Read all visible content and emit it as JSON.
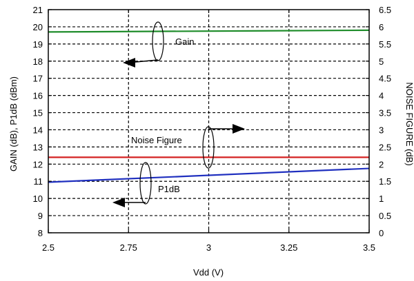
{
  "chart_data": {
    "type": "line",
    "xlabel": "Vdd (V)",
    "ylabel": "GAIN (dB), P1dB (dBm)",
    "y2label": "NOISE FIGURE (dB)",
    "xlim": [
      2.5,
      3.5
    ],
    "ylim": [
      8,
      21
    ],
    "y2lim": [
      0,
      6.5
    ],
    "x_ticks": [
      "2.5",
      "2.75",
      "3",
      "3.25",
      "3.5"
    ],
    "y_ticks": [
      "8",
      "9",
      "10",
      "11",
      "12",
      "13",
      "14",
      "15",
      "16",
      "17",
      "18",
      "19",
      "20",
      "21"
    ],
    "y2_ticks": [
      "0",
      "0.5",
      "1",
      "1.5",
      "2",
      "2.5",
      "3",
      "3.5",
      "4",
      "4.5",
      "5",
      "5.5",
      "6",
      "6.5"
    ],
    "grid": true,
    "series": [
      {
        "name": "Gain",
        "axis": "left",
        "color": "#1e8c2a",
        "x": [
          2.5,
          3.5
        ],
        "values": [
          19.7,
          19.8
        ]
      },
      {
        "name": "Noise Figure",
        "axis": "right",
        "color": "#d42020",
        "x": [
          2.5,
          3.5
        ],
        "values": [
          2.2,
          2.2
        ]
      },
      {
        "name": "P1dB",
        "axis": "left",
        "color": "#1f2fbf",
        "x": [
          2.5,
          3.5
        ],
        "values": [
          10.95,
          11.75
        ]
      }
    ]
  }
}
